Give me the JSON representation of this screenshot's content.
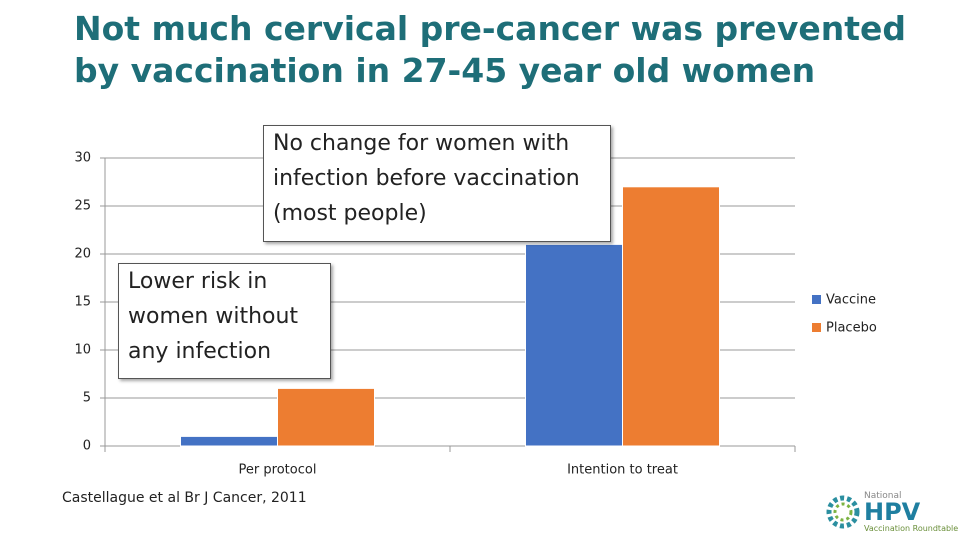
{
  "chart_data": {
    "type": "bar",
    "title": "Not much cervical pre-cancer was prevented by vaccination in 27-45 year old women",
    "categories": [
      "Per protocol",
      "Intention to treat"
    ],
    "series": [
      {
        "name": "Vaccine",
        "color": "#4472c4",
        "values": [
          1,
          21
        ]
      },
      {
        "name": "Placebo",
        "color": "#ed7d31",
        "values": [
          6,
          27
        ]
      }
    ],
    "ylim": [
      0,
      30
    ],
    "yticks": [
      0,
      5,
      10,
      15,
      20,
      25,
      30
    ],
    "grid": true,
    "legend": "right",
    "annotations": [
      "No change for women with infection before vaccination (most people)",
      "Lower risk in women without any infection"
    ],
    "source": "Castellague et al Br J Cancer, 2011"
  },
  "logo": {
    "top": "National",
    "main": "HPV",
    "bottom": "Vaccination Roundtable"
  }
}
